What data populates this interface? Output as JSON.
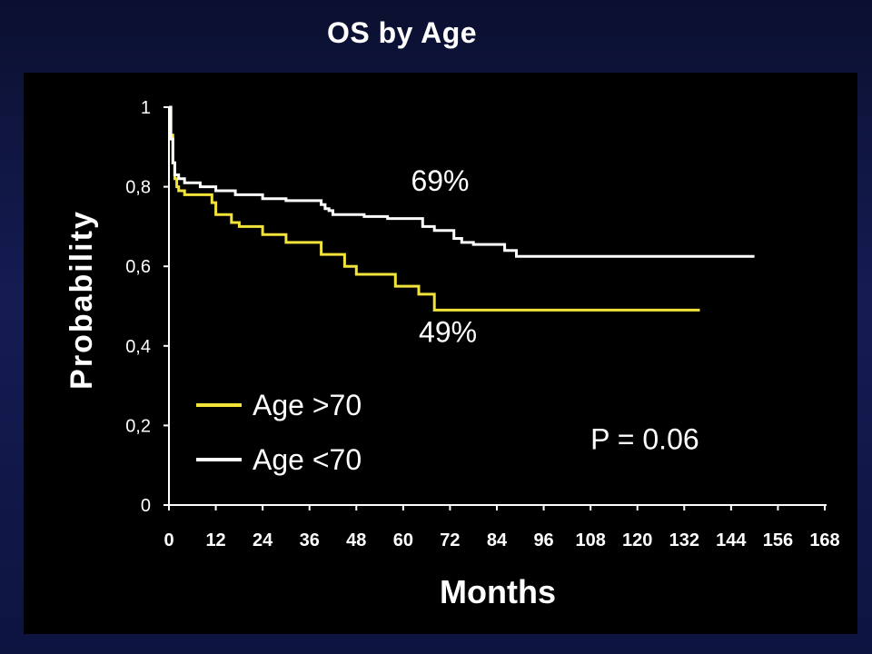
{
  "slide": {
    "title": "OS by Age"
  },
  "colors": {
    "background": "#141c52",
    "panel": "#000000",
    "age_gt70": "#f2e33a",
    "age_lt70": "#ffffff"
  },
  "chart_data": {
    "type": "line",
    "title": "OS by Age",
    "xlabel": "Months",
    "ylabel": "Probability",
    "xlim": [
      0,
      168
    ],
    "ylim": [
      0,
      1
    ],
    "xticks": [
      0,
      12,
      24,
      36,
      48,
      60,
      72,
      84,
      96,
      108,
      120,
      132,
      144,
      156,
      168
    ],
    "yticks": [
      {
        "value": 1,
        "label": "1"
      },
      {
        "value": 0.8,
        "label": "0,8"
      },
      {
        "value": 0.6,
        "label": "0,6"
      },
      {
        "value": 0.4,
        "label": "0,4"
      },
      {
        "value": 0.2,
        "label": "0,2"
      },
      {
        "value": 0,
        "label": "0"
      }
    ],
    "grid": false,
    "legend_position": "bottom-left",
    "series": [
      {
        "name": "Age >70",
        "color": "#f2e33a",
        "x": [
          0,
          0.5,
          1,
          1.5,
          2,
          2.5,
          4,
          11,
          12,
          16,
          18,
          24,
          30,
          39,
          45,
          48,
          58,
          60,
          64,
          68,
          70,
          136
        ],
        "y": [
          1,
          0.93,
          0.86,
          0.82,
          0.8,
          0.79,
          0.78,
          0.76,
          0.73,
          0.71,
          0.7,
          0.68,
          0.66,
          0.63,
          0.6,
          0.58,
          0.55,
          0.55,
          0.53,
          0.49,
          0.49,
          0.49
        ]
      },
      {
        "name": "Age <70",
        "color": "#ffffff",
        "x": [
          0,
          0.5,
          1,
          1.5,
          2.5,
          4,
          8,
          12,
          17,
          24,
          30,
          39,
          40,
          41,
          42,
          50,
          56,
          65,
          68,
          73,
          75,
          78,
          86,
          89,
          150
        ],
        "y": [
          1,
          0.92,
          0.86,
          0.83,
          0.82,
          0.81,
          0.8,
          0.79,
          0.78,
          0.77,
          0.765,
          0.755,
          0.745,
          0.74,
          0.73,
          0.725,
          0.72,
          0.7,
          0.69,
          0.67,
          0.66,
          0.655,
          0.64,
          0.625,
          0.625
        ]
      }
    ],
    "annotations": [
      {
        "text": "69%",
        "x": 62,
        "y": 0.79
      },
      {
        "text": "49%",
        "x": 64,
        "y": 0.41
      },
      {
        "text": "P = 0.06",
        "x": 108,
        "y": 0.14
      }
    ]
  }
}
